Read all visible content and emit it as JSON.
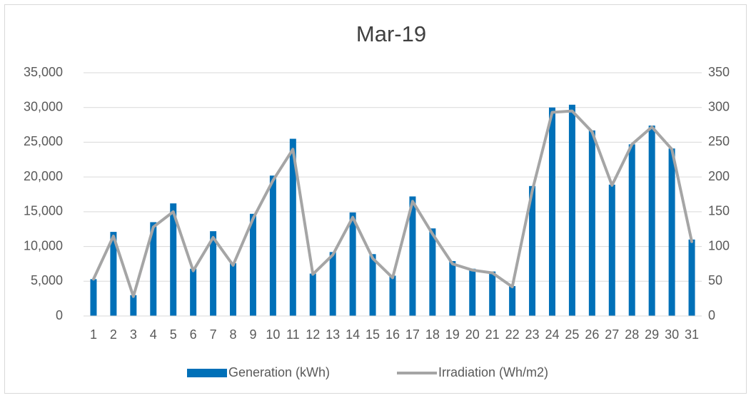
{
  "chart_data": {
    "type": "bar_line",
    "title": "Mar-19",
    "categories": [
      "1",
      "2",
      "3",
      "4",
      "5",
      "6",
      "7",
      "8",
      "9",
      "10",
      "11",
      "12",
      "13",
      "14",
      "15",
      "16",
      "17",
      "18",
      "19",
      "20",
      "21",
      "22",
      "23",
      "24",
      "25",
      "26",
      "27",
      "28",
      "29",
      "30",
      "31"
    ],
    "series": [
      {
        "name": "Generation (kWh)",
        "type": "bar",
        "color": "#0070b8",
        "values": [
          5300,
          12100,
          3000,
          13500,
          16200,
          6800,
          12200,
          7600,
          14700,
          20200,
          25500,
          6100,
          9200,
          14900,
          8900,
          5800,
          17200,
          12600,
          7900,
          6800,
          6400,
          4300,
          18700,
          30000,
          30400,
          26700,
          18900,
          24700,
          27400,
          24100,
          11000
        ]
      },
      {
        "name": "Irradiation (Wh/m2)",
        "type": "line",
        "axis": "y2",
        "color": "#a5a5a5",
        "values": [
          53,
          115,
          28,
          128,
          150,
          65,
          113,
          73,
          140,
          195,
          240,
          60,
          88,
          142,
          83,
          55,
          165,
          118,
          75,
          66,
          62,
          42,
          180,
          293,
          295,
          265,
          188,
          247,
          272,
          240,
          107
        ]
      }
    ],
    "ylim": [
      0,
      35000
    ],
    "yticks": [
      0,
      {
        "value": 5000,
        "label": "5,000"
      },
      {
        "value": 10000,
        "label": "10,000"
      },
      {
        "value": 15000,
        "label": "15,000"
      },
      {
        "value": 20000,
        "label": "20,000"
      },
      {
        "value": 25000,
        "label": "25,000"
      },
      {
        "value": 30000,
        "label": "30,000"
      },
      {
        "value": 35000,
        "label": "35,000"
      }
    ],
    "y2lim": [
      0,
      350
    ],
    "y2ticks": [
      0,
      50,
      100,
      150,
      200,
      250,
      300,
      350
    ],
    "grid": true,
    "legend": "bottom"
  }
}
